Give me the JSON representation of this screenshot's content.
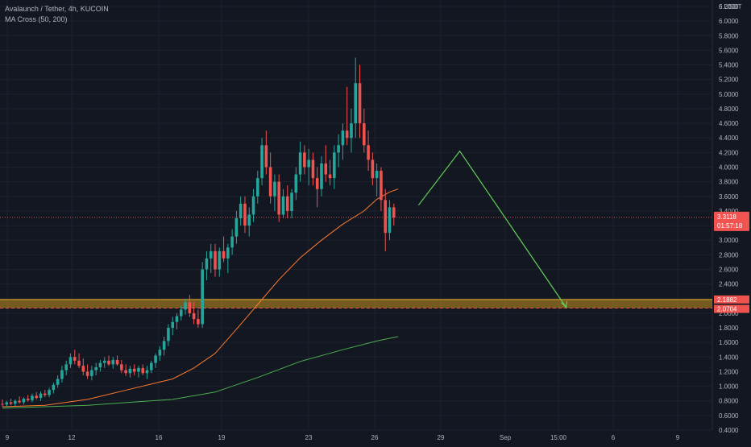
{
  "chart_data": {
    "type": "candlestick",
    "title": "Avalaunch / Tether, 4h, KUCOIN",
    "indicator": "MA Cross (50, 200)",
    "y_unit": "USDT",
    "ylim": [
      0.4,
      6.0
    ],
    "y_ticks": [
      "6 USDT",
      "6.2000",
      "6.0000",
      "5.8000",
      "5.6000",
      "5.4000",
      "5.2000",
      "5.0000",
      "4.8000",
      "4.6000",
      "4.4000",
      "4.2000",
      "4.0000",
      "3.8000",
      "3.6000",
      "3.4000",
      "3.2000",
      "3.0000",
      "2.8000",
      "2.6000",
      "2.4000",
      "2.2000",
      "2.0000",
      "1.8000",
      "1.6000",
      "1.4000",
      "1.2000",
      "1.0000",
      "0.8000",
      "0.6000",
      "0.4000"
    ],
    "x_ticks": [
      "9",
      "12",
      "16",
      "19",
      "23",
      "26",
      "29",
      "Sep",
      "15:00",
      "6",
      "9"
    ],
    "grid": true,
    "current_price": {
      "value": "3.3118",
      "countdown": "01:57:18",
      "color": "#f05350"
    },
    "zone": {
      "high": 2.1882,
      "low": 2.0704,
      "high_label": "2.1882",
      "low_label": "2.0704",
      "color": "#c89320"
    },
    "colors": {
      "up": "#26a69a",
      "down": "#ef5350",
      "ma50": "#ff7a2f",
      "ma200": "#4caf50",
      "projection": "#5fcf56"
    },
    "candles": [
      {
        "o": 0.76,
        "h": 0.82,
        "l": 0.72,
        "c": 0.75
      },
      {
        "o": 0.75,
        "h": 0.8,
        "l": 0.72,
        "c": 0.78
      },
      {
        "o": 0.78,
        "h": 0.83,
        "l": 0.74,
        "c": 0.76
      },
      {
        "o": 0.76,
        "h": 0.82,
        "l": 0.73,
        "c": 0.8
      },
      {
        "o": 0.8,
        "h": 0.86,
        "l": 0.76,
        "c": 0.78
      },
      {
        "o": 0.78,
        "h": 0.85,
        "l": 0.75,
        "c": 0.83
      },
      {
        "o": 0.83,
        "h": 0.88,
        "l": 0.79,
        "c": 0.81
      },
      {
        "o": 0.81,
        "h": 0.9,
        "l": 0.78,
        "c": 0.87
      },
      {
        "o": 0.87,
        "h": 0.92,
        "l": 0.82,
        "c": 0.84
      },
      {
        "o": 0.84,
        "h": 0.93,
        "l": 0.8,
        "c": 0.9
      },
      {
        "o": 0.9,
        "h": 0.95,
        "l": 0.85,
        "c": 0.88
      },
      {
        "o": 0.88,
        "h": 0.98,
        "l": 0.85,
        "c": 0.95
      },
      {
        "o": 0.95,
        "h": 1.05,
        "l": 0.9,
        "c": 1.02
      },
      {
        "o": 1.02,
        "h": 1.15,
        "l": 0.98,
        "c": 1.1
      },
      {
        "o": 1.1,
        "h": 1.28,
        "l": 1.05,
        "c": 1.22
      },
      {
        "o": 1.22,
        "h": 1.35,
        "l": 1.15,
        "c": 1.3
      },
      {
        "o": 1.3,
        "h": 1.45,
        "l": 1.25,
        "c": 1.4
      },
      {
        "o": 1.4,
        "h": 1.5,
        "l": 1.3,
        "c": 1.35
      },
      {
        "o": 1.35,
        "h": 1.45,
        "l": 1.25,
        "c": 1.28
      },
      {
        "o": 1.28,
        "h": 1.38,
        "l": 1.15,
        "c": 1.2
      },
      {
        "o": 1.2,
        "h": 1.3,
        "l": 1.1,
        "c": 1.14
      },
      {
        "o": 1.14,
        "h": 1.28,
        "l": 1.08,
        "c": 1.22
      },
      {
        "o": 1.22,
        "h": 1.32,
        "l": 1.15,
        "c": 1.26
      },
      {
        "o": 1.26,
        "h": 1.36,
        "l": 1.2,
        "c": 1.32
      },
      {
        "o": 1.32,
        "h": 1.4,
        "l": 1.25,
        "c": 1.35
      },
      {
        "o": 1.35,
        "h": 1.42,
        "l": 1.28,
        "c": 1.3
      },
      {
        "o": 1.3,
        "h": 1.4,
        "l": 1.24,
        "c": 1.36
      },
      {
        "o": 1.36,
        "h": 1.42,
        "l": 1.28,
        "c": 1.3
      },
      {
        "o": 1.3,
        "h": 1.36,
        "l": 1.18,
        "c": 1.22
      },
      {
        "o": 1.22,
        "h": 1.3,
        "l": 1.14,
        "c": 1.18
      },
      {
        "o": 1.18,
        "h": 1.28,
        "l": 1.12,
        "c": 1.24
      },
      {
        "o": 1.24,
        "h": 1.3,
        "l": 1.15,
        "c": 1.2
      },
      {
        "o": 1.2,
        "h": 1.28,
        "l": 1.12,
        "c": 1.25
      },
      {
        "o": 1.25,
        "h": 1.3,
        "l": 1.15,
        "c": 1.18
      },
      {
        "o": 1.18,
        "h": 1.28,
        "l": 1.1,
        "c": 1.22
      },
      {
        "o": 1.22,
        "h": 1.35,
        "l": 1.18,
        "c": 1.32
      },
      {
        "o": 1.32,
        "h": 1.45,
        "l": 1.25,
        "c": 1.42
      },
      {
        "o": 1.42,
        "h": 1.55,
        "l": 1.35,
        "c": 1.5
      },
      {
        "o": 1.5,
        "h": 1.68,
        "l": 1.42,
        "c": 1.62
      },
      {
        "o": 1.62,
        "h": 1.85,
        "l": 1.55,
        "c": 1.8
      },
      {
        "o": 1.8,
        "h": 1.95,
        "l": 1.7,
        "c": 1.88
      },
      {
        "o": 1.88,
        "h": 2.0,
        "l": 1.78,
        "c": 1.96
      },
      {
        "o": 1.96,
        "h": 2.1,
        "l": 1.9,
        "c": 2.05
      },
      {
        "o": 2.05,
        "h": 2.2,
        "l": 1.98,
        "c": 2.15
      },
      {
        "o": 2.15,
        "h": 2.25,
        "l": 1.95,
        "c": 2.0
      },
      {
        "o": 2.0,
        "h": 2.15,
        "l": 1.85,
        "c": 1.92
      },
      {
        "o": 1.92,
        "h": 2.05,
        "l": 1.8,
        "c": 1.85
      },
      {
        "o": 1.85,
        "h": 2.7,
        "l": 1.8,
        "c": 2.6
      },
      {
        "o": 2.6,
        "h": 2.85,
        "l": 2.45,
        "c": 2.75
      },
      {
        "o": 2.75,
        "h": 2.95,
        "l": 2.55,
        "c": 2.85
      },
      {
        "o": 2.85,
        "h": 2.95,
        "l": 2.5,
        "c": 2.6
      },
      {
        "o": 2.6,
        "h": 2.9,
        "l": 2.5,
        "c": 2.85
      },
      {
        "o": 2.85,
        "h": 3.05,
        "l": 2.7,
        "c": 2.75
      },
      {
        "o": 2.75,
        "h": 2.95,
        "l": 2.55,
        "c": 2.9
      },
      {
        "o": 2.9,
        "h": 3.15,
        "l": 2.8,
        "c": 3.05
      },
      {
        "o": 3.05,
        "h": 3.4,
        "l": 2.95,
        "c": 3.3
      },
      {
        "o": 3.3,
        "h": 3.6,
        "l": 3.2,
        "c": 3.5
      },
      {
        "o": 3.5,
        "h": 3.6,
        "l": 3.1,
        "c": 3.2
      },
      {
        "o": 3.2,
        "h": 3.45,
        "l": 3.05,
        "c": 3.35
      },
      {
        "o": 3.35,
        "h": 3.7,
        "l": 3.25,
        "c": 3.6
      },
      {
        "o": 3.6,
        "h": 3.95,
        "l": 3.5,
        "c": 3.85
      },
      {
        "o": 3.85,
        "h": 4.4,
        "l": 3.75,
        "c": 4.3
      },
      {
        "o": 4.3,
        "h": 4.5,
        "l": 3.9,
        "c": 4.0
      },
      {
        "o": 4.0,
        "h": 4.2,
        "l": 3.5,
        "c": 3.6
      },
      {
        "o": 3.6,
        "h": 3.9,
        "l": 3.4,
        "c": 3.8
      },
      {
        "o": 3.8,
        "h": 3.9,
        "l": 3.25,
        "c": 3.35
      },
      {
        "o": 3.35,
        "h": 3.7,
        "l": 3.3,
        "c": 3.6
      },
      {
        "o": 3.6,
        "h": 3.75,
        "l": 3.3,
        "c": 3.4
      },
      {
        "o": 3.4,
        "h": 3.7,
        "l": 3.3,
        "c": 3.65
      },
      {
        "o": 3.65,
        "h": 4.0,
        "l": 3.55,
        "c": 3.9
      },
      {
        "o": 3.9,
        "h": 4.35,
        "l": 3.8,
        "c": 4.2
      },
      {
        "o": 4.2,
        "h": 4.3,
        "l": 3.9,
        "c": 4.0
      },
      {
        "o": 4.0,
        "h": 4.25,
        "l": 3.75,
        "c": 4.1
      },
      {
        "o": 4.1,
        "h": 4.2,
        "l": 3.75,
        "c": 3.85
      },
      {
        "o": 3.85,
        "h": 4.0,
        "l": 3.45,
        "c": 3.7
      },
      {
        "o": 3.7,
        "h": 4.15,
        "l": 3.6,
        "c": 4.05
      },
      {
        "o": 4.05,
        "h": 4.3,
        "l": 3.8,
        "c": 3.9
      },
      {
        "o": 3.9,
        "h": 4.1,
        "l": 3.75,
        "c": 3.85
      },
      {
        "o": 3.85,
        "h": 4.3,
        "l": 3.7,
        "c": 4.2
      },
      {
        "o": 4.2,
        "h": 4.45,
        "l": 4.0,
        "c": 4.3
      },
      {
        "o": 4.3,
        "h": 4.6,
        "l": 4.1,
        "c": 4.5
      },
      {
        "o": 4.5,
        "h": 5.1,
        "l": 4.3,
        "c": 4.4
      },
      {
        "o": 4.4,
        "h": 4.8,
        "l": 4.2,
        "c": 4.6
      },
      {
        "o": 4.6,
        "h": 5.5,
        "l": 4.4,
        "c": 5.15
      },
      {
        "o": 5.15,
        "h": 5.4,
        "l": 4.4,
        "c": 4.6
      },
      {
        "o": 4.6,
        "h": 4.8,
        "l": 4.2,
        "c": 4.3
      },
      {
        "o": 4.3,
        "h": 4.5,
        "l": 3.95,
        "c": 4.1
      },
      {
        "o": 4.1,
        "h": 4.2,
        "l": 3.75,
        "c": 3.85
      },
      {
        "o": 3.85,
        "h": 4.05,
        "l": 3.6,
        "c": 3.95
      },
      {
        "o": 3.95,
        "h": 4.0,
        "l": 3.4,
        "c": 3.55
      },
      {
        "o": 3.55,
        "h": 3.7,
        "l": 2.85,
        "c": 3.1
      },
      {
        "o": 3.1,
        "h": 3.55,
        "l": 3.0,
        "c": 3.45
      },
      {
        "o": 3.45,
        "h": 3.5,
        "l": 3.2,
        "c": 3.31
      }
    ],
    "ma50": [
      [
        0,
        0.72
      ],
      [
        10,
        0.74
      ],
      [
        20,
        0.82
      ],
      [
        30,
        0.96
      ],
      [
        40,
        1.1
      ],
      [
        45,
        1.25
      ],
      [
        50,
        1.45
      ],
      [
        55,
        1.78
      ],
      [
        60,
        2.12
      ],
      [
        65,
        2.46
      ],
      [
        70,
        2.76
      ],
      [
        75,
        3.0
      ],
      [
        80,
        3.22
      ],
      [
        85,
        3.4
      ],
      [
        88,
        3.56
      ],
      [
        91,
        3.66
      ],
      [
        93,
        3.7
      ]
    ],
    "ma200": [
      [
        0,
        0.7
      ],
      [
        20,
        0.74
      ],
      [
        40,
        0.82
      ],
      [
        50,
        0.92
      ],
      [
        60,
        1.12
      ],
      [
        70,
        1.34
      ],
      [
        80,
        1.5
      ],
      [
        88,
        1.62
      ],
      [
        93,
        1.68
      ]
    ],
    "projection": [
      {
        "x": 5.8,
        "y": 3.48
      },
      {
        "x": 15.5,
        "y": 4.22
      },
      {
        "x": 40.5,
        "y": 2.08
      }
    ]
  }
}
